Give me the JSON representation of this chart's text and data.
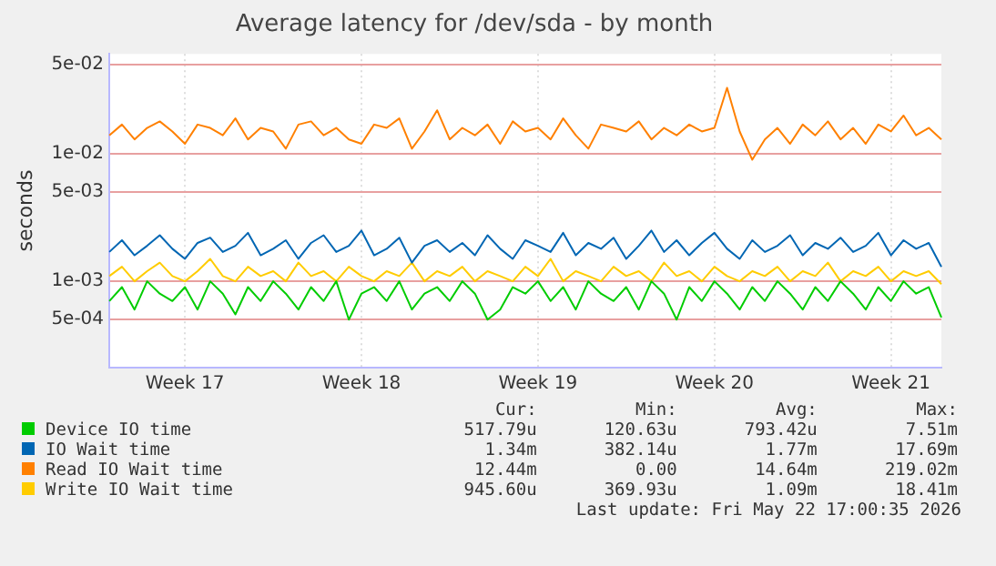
{
  "chart_data": {
    "type": "line",
    "title": "Average latency for /dev/sda - by month",
    "ylabel": "seconds",
    "log": true,
    "grid": true,
    "legend": "bottom",
    "ylim": [
      0.00021,
      0.061
    ],
    "yticks": [
      {
        "value": 0.0005,
        "label": "5e-04"
      },
      {
        "value": 0.001,
        "label": "1e-03"
      },
      {
        "value": 0.005,
        "label": "5e-03"
      },
      {
        "value": 0.01,
        "label": "1e-02"
      },
      {
        "value": 0.05,
        "label": "5e-02"
      }
    ],
    "categories": [
      null,
      null,
      null,
      null,
      null,
      null,
      "Week 17",
      null,
      null,
      null,
      null,
      null,
      null,
      null,
      null,
      null,
      null,
      null,
      null,
      null,
      "Week 18",
      null,
      null,
      null,
      null,
      null,
      null,
      null,
      null,
      null,
      null,
      null,
      null,
      null,
      "Week 19",
      null,
      null,
      null,
      null,
      null,
      null,
      null,
      null,
      null,
      null,
      null,
      null,
      null,
      "Week 20",
      null,
      null,
      null,
      null,
      null,
      null,
      null,
      null,
      null,
      null,
      null,
      null,
      null,
      "Week 21",
      null,
      null,
      null,
      null
    ],
    "series": [
      {
        "name": "Device IO time",
        "color": "#00cc00",
        "values": [
          0.0007,
          0.0009,
          0.0006,
          0.001,
          0.0008,
          0.0007,
          0.0009,
          0.0006,
          0.001,
          0.0008,
          0.00055,
          0.0009,
          0.0007,
          0.001,
          0.0008,
          0.0006,
          0.0009,
          0.0007,
          0.001,
          0.0005,
          0.0008,
          0.0009,
          0.0007,
          0.001,
          0.0006,
          0.0008,
          0.0009,
          0.0007,
          0.001,
          0.0008,
          0.0005,
          0.0006,
          0.0009,
          0.0008,
          0.001,
          0.0007,
          0.0009,
          0.0006,
          0.001,
          0.0008,
          0.0007,
          0.0009,
          0.0006,
          0.001,
          0.0008,
          0.0005,
          0.0009,
          0.0007,
          0.001,
          0.0008,
          0.0006,
          0.0009,
          0.0007,
          0.001,
          0.0008,
          0.0006,
          0.0009,
          0.0007,
          0.001,
          0.0008,
          0.0006,
          0.0009,
          0.0007,
          0.001,
          0.0008,
          0.0009,
          0.00052
        ]
      },
      {
        "name": "IO Wait time",
        "color": "#0066b3",
        "values": [
          0.0017,
          0.0021,
          0.0016,
          0.0019,
          0.0023,
          0.0018,
          0.0015,
          0.002,
          0.0022,
          0.0017,
          0.0019,
          0.0024,
          0.0016,
          0.0018,
          0.0021,
          0.0015,
          0.002,
          0.0023,
          0.0017,
          0.0019,
          0.0025,
          0.0016,
          0.0018,
          0.0022,
          0.0014,
          0.0019,
          0.0021,
          0.0017,
          0.002,
          0.0016,
          0.0023,
          0.0018,
          0.0015,
          0.0021,
          0.0019,
          0.0017,
          0.0024,
          0.0016,
          0.002,
          0.0018,
          0.0022,
          0.0015,
          0.0019,
          0.0025,
          0.0017,
          0.0021,
          0.0016,
          0.002,
          0.0024,
          0.0018,
          0.0015,
          0.0021,
          0.0017,
          0.0019,
          0.0023,
          0.0016,
          0.002,
          0.0018,
          0.0022,
          0.0017,
          0.0019,
          0.0024,
          0.0016,
          0.0021,
          0.0018,
          0.002,
          0.0013
        ]
      },
      {
        "name": "Read IO Wait time",
        "color": "#ff8000",
        "values": [
          0.014,
          0.017,
          0.013,
          0.016,
          0.018,
          0.015,
          0.012,
          0.017,
          0.016,
          0.014,
          0.019,
          0.013,
          0.016,
          0.015,
          0.011,
          0.017,
          0.018,
          0.014,
          0.016,
          0.013,
          0.012,
          0.017,
          0.016,
          0.019,
          0.011,
          0.015,
          0.022,
          0.013,
          0.016,
          0.014,
          0.017,
          0.012,
          0.018,
          0.015,
          0.016,
          0.013,
          0.019,
          0.014,
          0.011,
          0.017,
          0.016,
          0.015,
          0.018,
          0.013,
          0.016,
          0.014,
          0.017,
          0.015,
          0.016,
          0.033,
          0.015,
          0.009,
          0.013,
          0.016,
          0.012,
          0.017,
          0.014,
          0.018,
          0.013,
          0.016,
          0.012,
          0.017,
          0.015,
          0.02,
          0.014,
          0.016,
          0.013
        ]
      },
      {
        "name": "Write IO Wait time",
        "color": "#ffcc00",
        "values": [
          0.0011,
          0.0013,
          0.001,
          0.0012,
          0.0014,
          0.0011,
          0.001,
          0.0012,
          0.0015,
          0.0011,
          0.001,
          0.0013,
          0.0011,
          0.0012,
          0.001,
          0.0014,
          0.0011,
          0.0012,
          0.001,
          0.0013,
          0.0011,
          0.001,
          0.0012,
          0.0011,
          0.0014,
          0.001,
          0.0012,
          0.0011,
          0.0013,
          0.001,
          0.0012,
          0.0011,
          0.001,
          0.0013,
          0.0011,
          0.0015,
          0.001,
          0.0012,
          0.0011,
          0.001,
          0.0013,
          0.0011,
          0.0012,
          0.001,
          0.0014,
          0.0011,
          0.0012,
          0.001,
          0.0013,
          0.0011,
          0.001,
          0.0012,
          0.0011,
          0.0013,
          0.001,
          0.0012,
          0.0011,
          0.0014,
          0.001,
          0.0012,
          0.0011,
          0.0013,
          0.001,
          0.0012,
          0.0011,
          0.0012,
          0.00095
        ]
      }
    ],
    "annotations": [
      "Cur:",
      "Min:",
      "Avg:",
      "Max:",
      "517.79u",
      "120.63u",
      "793.42u",
      "7.51m",
      "1.34m",
      "382.14u",
      "1.77m",
      "17.69m",
      "12.44m",
      "0.00",
      "14.64m",
      "219.02m",
      "945.60u",
      "369.93u",
      "1.09m",
      "18.41m",
      "Last update: Fri May 22 17:00:35 2026"
    ]
  }
}
